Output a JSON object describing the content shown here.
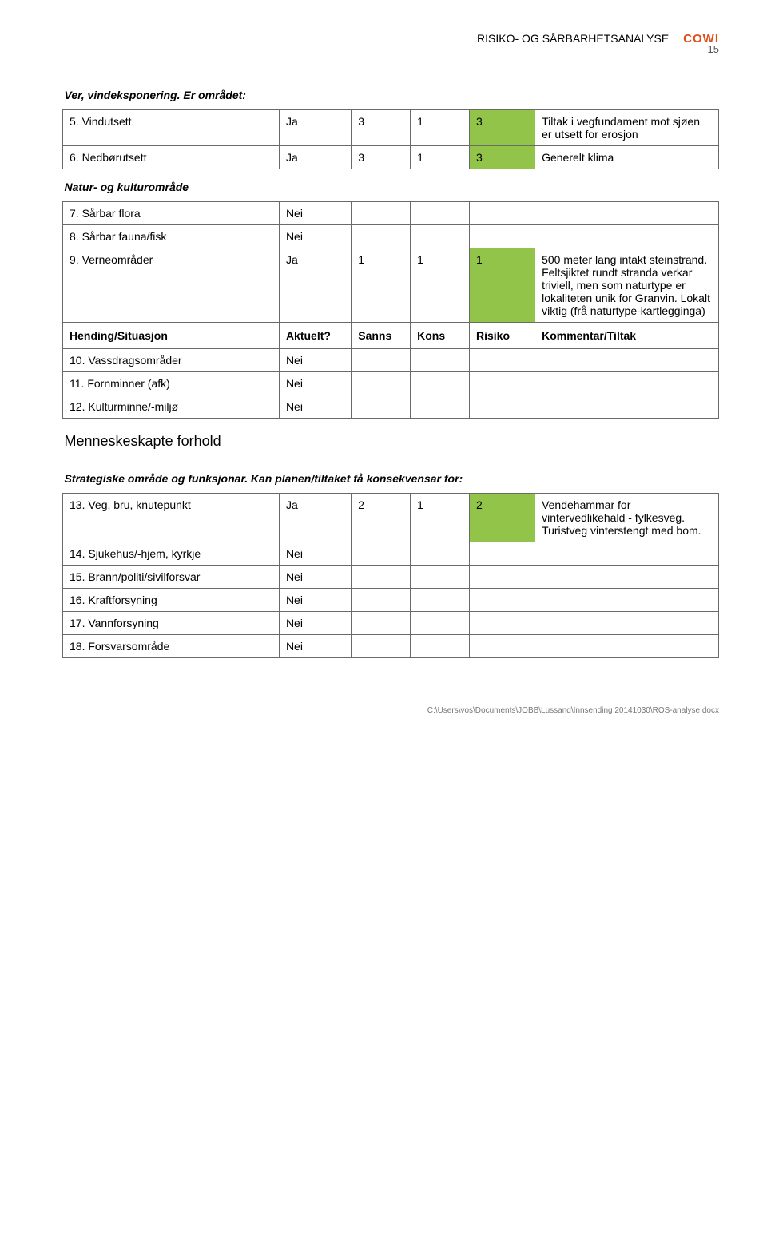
{
  "header": {
    "title": "RISIKO- OG SÅRBARHETSANALYSE",
    "logo": "COWI",
    "page": "15"
  },
  "colors": {
    "risk_green": "#91c449",
    "border": "#6a6a6a",
    "logo": "#e04e1a"
  },
  "sections": {
    "s1": "Ver, vindeksponering. Er området:",
    "s2": "Natur- og kulturområde",
    "s3": "Menneskeskapte forhold",
    "s4": "Strategiske område og funksjonar. Kan planen/tiltaket få konsekvensar for:"
  },
  "headers": {
    "hending": "Hending/Situasjon",
    "aktuelt": "Aktuelt?",
    "sanns": "Sanns",
    "kons": "Kons",
    "risiko": "Risiko",
    "kommentar": "Kommentar/Tiltak"
  },
  "rows": {
    "r5": {
      "label": "5. Vindutsett",
      "akt": "Ja",
      "sanns": "3",
      "kons": "1",
      "risk": "3",
      "komm": "Tiltak i vegfundament mot sjøen er utsett for erosjon"
    },
    "r6": {
      "label": "6. Nedbørutsett",
      "akt": "Ja",
      "sanns": "3",
      "kons": "1",
      "risk": "3",
      "komm": "Generelt klima"
    },
    "r7": {
      "label": "7. Sårbar flora",
      "akt": "Nei"
    },
    "r8": {
      "label": "8. Sårbar fauna/fisk",
      "akt": "Nei"
    },
    "r9": {
      "label": "9. Verneområder",
      "akt": "Ja",
      "sanns": "1",
      "kons": "1",
      "risk": "1",
      "komm": "500 meter lang intakt steinstrand. Feltsjiktet rundt stranda verkar triviell, men som naturtype er lokaliteten unik for Granvin. Lokalt viktig (frå naturtype-kartlegginga)"
    },
    "r10": {
      "label": "10. Vassdragsområder",
      "akt": "Nei"
    },
    "r11": {
      "label": "11. Fornminner (afk)",
      "akt": "Nei"
    },
    "r12": {
      "label": "12. Kulturminne/-miljø",
      "akt": "Nei"
    },
    "r13": {
      "label": "13. Veg, bru, knutepunkt",
      "akt": "Ja",
      "sanns": "2",
      "kons": "1",
      "risk": "2",
      "komm": "Vendehammar for vintervedlikehald - fylkesveg. Turistveg vinterstengt med bom."
    },
    "r14": {
      "label": "14. Sjukehus/-hjem, kyrkje",
      "akt": "Nei"
    },
    "r15": {
      "label": "15. Brann/politi/sivilforsvar",
      "akt": "Nei"
    },
    "r16": {
      "label": "16. Kraftforsyning",
      "akt": "Nei"
    },
    "r17": {
      "label": "17. Vannforsyning",
      "akt": "Nei"
    },
    "r18": {
      "label": "18. Forsvarsområde",
      "akt": "Nei"
    }
  },
  "footer": "C:\\Users\\vos\\Documents\\JOBB\\Lussand\\Innsending 20141030\\ROS-analyse.docx"
}
